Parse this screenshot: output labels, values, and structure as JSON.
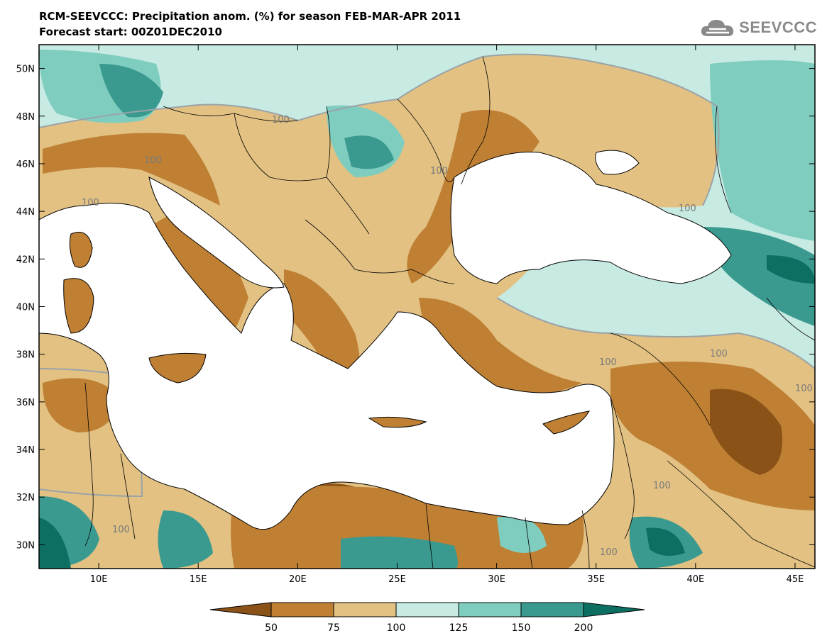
{
  "header": {
    "title": "RCM-SEEVCCC: Precipitation anom. (%) for season FEB-MAR-APR 2011",
    "subtitle": "Forecast start: 00Z01DEC2010"
  },
  "logo": {
    "text": "SEEVCCC",
    "icon": "cloud-icon"
  },
  "map": {
    "extent": {
      "lon_min": 7,
      "lon_max": 46,
      "lat_min": 29,
      "lat_max": 51
    },
    "lat_ticks": [
      "50N",
      "48N",
      "46N",
      "44N",
      "42N",
      "40N",
      "38N",
      "36N",
      "34N",
      "32N",
      "30N"
    ],
    "lon_ticks": [
      "10E",
      "15E",
      "20E",
      "25E",
      "30E",
      "35E",
      "40E",
      "45E"
    ],
    "contour_labels": [
      "100",
      "100",
      "100",
      "100",
      "100",
      "100",
      "100",
      "100",
      "100",
      "100",
      "100"
    ]
  },
  "legend": {
    "labels": [
      "50",
      "75",
      "100",
      "125",
      "150",
      "200"
    ],
    "colors": [
      "#8a5217",
      "#bf8034",
      "#e2c183",
      "#c7ebe3",
      "#7fcdbf",
      "#3a9a8f",
      "#0d6f62"
    ]
  },
  "colors": {
    "very_dry": "#8a5217",
    "dry": "#bf8034",
    "slightly_dry": "#e2c183",
    "slightly_wet": "#c7ebe3",
    "wet": "#7fcdbf",
    "very_wet": "#3a9a8f",
    "extreme_wet": "#0d6f62",
    "sea": "#ffffff",
    "contour": "#9aa3a8"
  }
}
